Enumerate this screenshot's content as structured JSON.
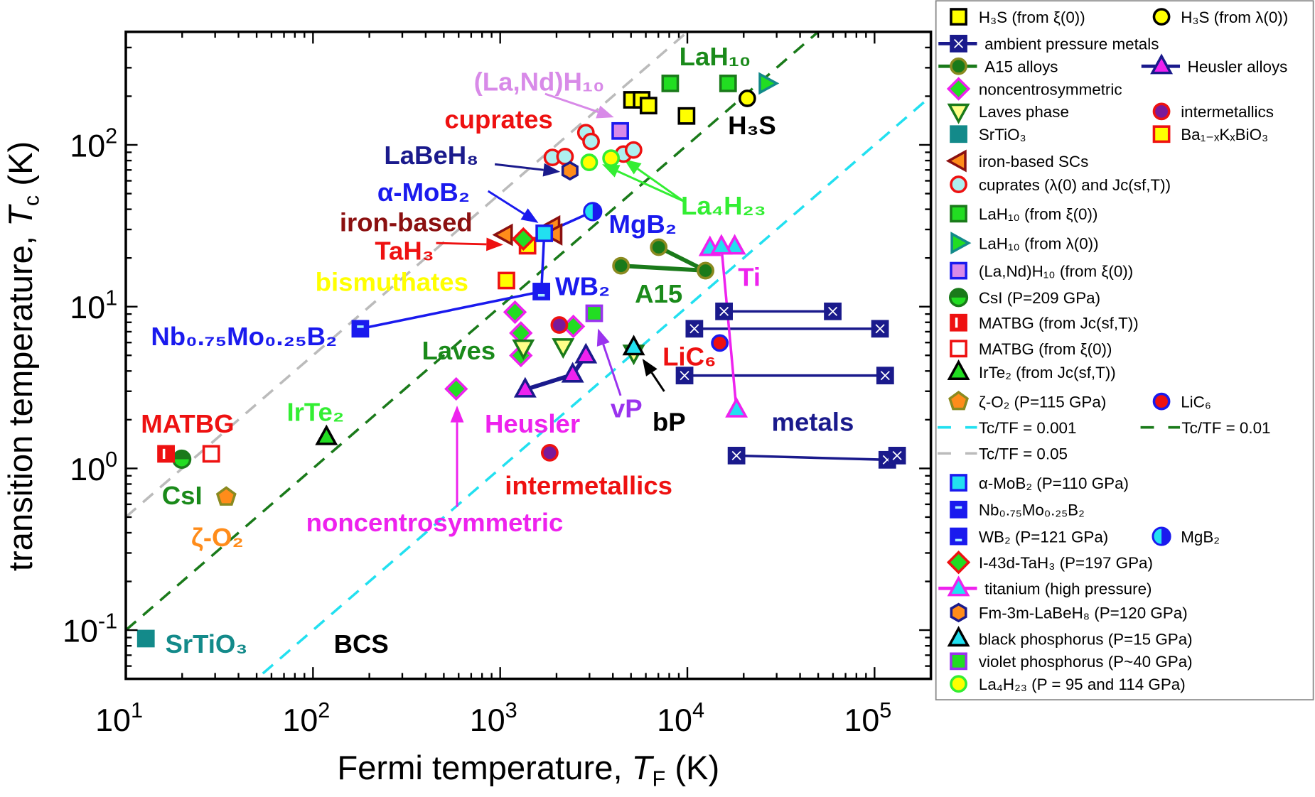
{
  "chart_data": {
    "type": "scatter",
    "xlabel": {
      "text": "Fermi temperature, ",
      "var": "T",
      "sub": "F",
      "unit": " (K)"
    },
    "ylabel": {
      "text": "transition temperature, ",
      "var": "T",
      "sub": "c",
      "unit": " (K)"
    },
    "xscale": "log",
    "yscale": "log",
    "xlim": [
      10,
      200000
    ],
    "ylim": [
      0.05,
      500
    ],
    "grid": false,
    "legend_placement": "right-outside",
    "xticks": [
      {
        "value": 10,
        "base": "10",
        "exp": "1"
      },
      {
        "value": 100,
        "base": "10",
        "exp": "2"
      },
      {
        "value": 1000,
        "base": "10",
        "exp": "3"
      },
      {
        "value": 10000,
        "base": "10",
        "exp": "4"
      },
      {
        "value": 100000,
        "base": "10",
        "exp": "5"
      }
    ],
    "yticks": [
      {
        "value": 0.1,
        "base": "10",
        "exp": "-1"
      },
      {
        "value": 1,
        "base": "10",
        "exp": "0"
      },
      {
        "value": 10,
        "base": "10",
        "exp": "1"
      },
      {
        "value": 100,
        "base": "10",
        "exp": "2"
      }
    ],
    "reference_lines": [
      {
        "name": "Tc/TF = 0.001",
        "ratio": 0.001,
        "color": "#22e0f0",
        "style": "dashed"
      },
      {
        "name": "Tc/TF = 0.01",
        "ratio": 0.01,
        "color": "#1a7a1a",
        "style": "dashed"
      },
      {
        "name": "Tc/TF = 0.05",
        "ratio": 0.05,
        "color": "#bbbbbb",
        "style": "dashed"
      }
    ],
    "series": [
      {
        "name": "H₃S (from ξ(0))",
        "marker": "square",
        "fill": "#ffff00",
        "stroke": "#000000",
        "points": [
          [
            5060,
            190
          ],
          [
            5700,
            190
          ],
          [
            6200,
            175
          ],
          [
            9900,
            151
          ]
        ]
      },
      {
        "name": "H₃S (from λ(0))",
        "marker": "circle",
        "fill": "#ffff00",
        "stroke": "#000000",
        "points": [
          [
            20900,
            194
          ]
        ]
      },
      {
        "name": "ambient pressure metals",
        "marker": "square-crossed",
        "fill": "#1a1a8c",
        "stroke": "#1a1a8c",
        "line_color": "#1a1a8c",
        "segments": [
          [
            [
              15700,
              9.35
            ],
            [
              59800,
              9.35
            ]
          ],
          [
            [
              10900,
              7.3
            ],
            [
              107000,
              7.3
            ]
          ],
          [
            [
              9660,
              3.75
            ],
            [
              114000,
              3.75
            ]
          ],
          [
            [
              18300,
              1.2
            ],
            [
              117000,
              1.13
            ],
            [
              132000,
              1.2
            ]
          ]
        ]
      },
      {
        "name": "A15 alloys",
        "marker": "circle",
        "fill": "#1a7a1a",
        "stroke": "#8a8a20",
        "line_color": "#1a7a1a",
        "segments": [
          [
            [
              4420,
              17.9
            ],
            [
              12500,
              16.7
            ]
          ],
          [
            [
              7030,
              23.3
            ],
            [
              12500,
              16.7
            ]
          ]
        ]
      },
      {
        "name": "Heusler alloys",
        "marker": "triangle-up",
        "fill": "#ee22ee",
        "stroke": "#1a1a8c",
        "line_color": "#1a1a8c",
        "segments": [
          [
            [
              1360,
              3.07
            ],
            [
              2440,
              3.8
            ],
            [
              2870,
              4.99
            ]
          ]
        ]
      },
      {
        "name": "noncentrosymmetric",
        "marker": "diamond",
        "fill": "#22dd22",
        "stroke": "#ee22ee",
        "points": [
          [
            1200,
            9.25
          ],
          [
            1290,
            6.87
          ],
          [
            1290,
            4.99
          ],
          [
            2460,
            7.55
          ],
          [
            582,
            3.1
          ]
        ]
      },
      {
        "name": "Laves phase",
        "marker": "triangle-down",
        "fill": "#ffff88",
        "stroke": "#1a7a1a",
        "points": [
          [
            1330,
            5.6
          ],
          [
            2170,
            5.7
          ],
          [
            5170,
            5.2
          ]
        ]
      },
      {
        "name": "intermetallics",
        "marker": "circle",
        "fill": "#7a1a9a",
        "stroke": "#ee1111",
        "points": [
          [
            2070,
            7.7
          ],
          [
            1840,
            1.25
          ]
        ]
      },
      {
        "name": "SrTiO₃",
        "marker": "square",
        "fill": "#138a8a",
        "stroke": "#138a8a",
        "points": [
          [
            12.8,
            0.0887
          ]
        ]
      },
      {
        "name": "Ba₁₋ₓKₓBiO₃",
        "marker": "square",
        "fill": "#ffff00",
        "stroke": "#ee1111",
        "points": [
          [
            1080,
            14.5
          ],
          [
            1400,
            23.8
          ]
        ]
      },
      {
        "name": "iron-based SCs",
        "marker": "triangle-left",
        "fill": "#ff8c1a",
        "stroke": "#8b1010",
        "points": [
          [
            1060,
            27.8
          ],
          [
            1900,
            31.3
          ],
          [
            1950,
            28
          ]
        ]
      },
      {
        "name": "cuprates (λ(0) and Jc(sf,T))",
        "marker": "circle",
        "fill": "#aef0f0",
        "stroke": "#ee1111",
        "points": [
          [
            1900,
            83.7
          ],
          [
            2220,
            84.7
          ],
          [
            2870,
            119
          ],
          [
            3060,
            105
          ],
          [
            4560,
            87.8
          ],
          [
            5160,
            93
          ]
        ]
      },
      {
        "name": "LaH₁₀ (from ξ(0))",
        "marker": "square",
        "fill": "#22dd22",
        "stroke": "#1a7a1a",
        "points": [
          [
            8100,
            240
          ],
          [
            16500,
            240
          ]
        ]
      },
      {
        "name": "LaH₁₀ (from λ(0))",
        "marker": "triangle-right",
        "fill": "#22dd22",
        "stroke": "#138a8a",
        "points": [
          [
            26500,
            240
          ]
        ]
      },
      {
        "name": "(La,Nd)H₁₀ (from ξ(0))",
        "marker": "square",
        "fill": "#d88ae8",
        "stroke": "#1a1aee",
        "points": [
          [
            4380,
            122
          ]
        ]
      },
      {
        "name": "CsI (P=209 GPa)",
        "marker": "circle-half-h",
        "fill": "#22dd22",
        "stroke": "#1a7a1a",
        "points": [
          [
            19.9,
            1.14
          ]
        ]
      },
      {
        "name": "MATBG (from Jc(sf,T))",
        "marker": "square-bar",
        "fill": "#ee1111",
        "stroke": "#ee1111",
        "points": [
          [
            16.4,
            1.23
          ]
        ]
      },
      {
        "name": "MATBG (from ξ(0))",
        "marker": "square",
        "fill": "#ffffff",
        "stroke": "#ee1111",
        "points": [
          [
            28.6,
            1.23
          ]
        ]
      },
      {
        "name": "IrTe₂ (from Jc(sf,T))",
        "marker": "triangle-up",
        "fill": "#22dd22",
        "stroke": "#000000",
        "points": [
          [
            118,
            1.56
          ]
        ]
      },
      {
        "name": "ζ-O₂ (P=115 GPa)",
        "marker": "pentagon",
        "fill": "#ff8c1a",
        "stroke": "#8a8a20",
        "points": [
          [
            34.4,
            0.666
          ]
        ]
      },
      {
        "name": "LiC₆",
        "marker": "circle",
        "fill": "#ee1111",
        "stroke": "#1a1aee",
        "points": [
          [
            14900,
            5.96
          ]
        ]
      },
      {
        "name": "α-MoB₂ (P=110 GPa)",
        "marker": "square",
        "fill": "#22e0f0",
        "stroke": "#1a1aee",
        "points": [
          [
            1720,
            28.4
          ]
        ]
      },
      {
        "name": "Nb₀.₇₅Mo₀.₂₅B₂",
        "marker": "square-dash",
        "fill": "#1a1aee",
        "stroke": "#1a1aee",
        "points": [
          [
            179,
            7.3
          ]
        ]
      },
      {
        "name": "WB₂ (P=121 GPa)",
        "marker": "square-dash-low",
        "fill": "#1a1aee",
        "stroke": "#1a1aee",
        "points": [
          [
            1660,
            12.4
          ]
        ]
      },
      {
        "name": "MgB₂",
        "marker": "circle-half-v",
        "fill": "#1a1aee",
        "stroke": "#1a1aee",
        "points": [
          [
            3120,
            38.7
          ]
        ]
      },
      {
        "name": "I-43d-TaH₃ (P=197 GPa)",
        "marker": "diamond",
        "fill": "#22dd22",
        "stroke": "#ee1111",
        "points": [
          [
            1330,
            26.2
          ]
        ]
      },
      {
        "name": "titanium (high pressure)",
        "marker": "triangle-up",
        "fill": "#22e0f0",
        "stroke": "#ee22ee",
        "line_color": "#ee22ee",
        "points": [
          [
            13200,
            23
          ],
          [
            17900,
            23.5
          ]
        ],
        "segments": [
          [
            [
              15200,
              23.5
            ],
            [
              18300,
              2.31
            ]
          ]
        ]
      },
      {
        "name": "Fm-3m-LaBeH₈ (P=120 GPa)",
        "marker": "hexagon",
        "fill": "#ff8c1a",
        "stroke": "#1a1a8c",
        "points": [
          [
            2360,
            69.2
          ]
        ]
      },
      {
        "name": "black phosphorus (P=15 GPa)",
        "marker": "triangle-up",
        "fill": "#22e0f0",
        "stroke": "#000000",
        "points": [
          [
            5170,
            5.6
          ]
        ]
      },
      {
        "name": "violet phosphorus (P~40 GPa)",
        "marker": "square",
        "fill": "#22dd22",
        "stroke": "#9a33ee",
        "points": [
          [
            3180,
            9.1
          ]
        ]
      },
      {
        "name": "La₄H₂₃ (P = 95 and 114 GPa)",
        "marker": "circle",
        "fill": "#ffff00",
        "stroke": "#33ee33",
        "points": [
          [
            2990,
            78
          ],
          [
            3910,
            82.8
          ]
        ]
      }
    ],
    "boride_connector": {
      "color": "#1a1aee",
      "points": [
        [
          179,
          7.3
        ],
        [
          1660,
          12.4
        ],
        [
          1720,
          28.4
        ],
        [
          3120,
          38.7
        ]
      ]
    },
    "annotations": [
      {
        "text": "(La,Nd)H₁₀",
        "color": "#d88ae8"
      },
      {
        "text": "LaH₁₀",
        "color": "#1a8a1a"
      },
      {
        "text": "cuprates",
        "color": "#ee1111"
      },
      {
        "text": "H₃S",
        "color": "#000000"
      },
      {
        "text": "LaBeH₈",
        "color": "#1a1a8c"
      },
      {
        "text": "α-MoB₂",
        "color": "#1a1aee"
      },
      {
        "text": "La₄H₂₃",
        "color": "#33ee33"
      },
      {
        "text": "MgB₂",
        "color": "#1a1aee"
      },
      {
        "text": "iron-based",
        "color": "#8b1010"
      },
      {
        "text": "TaH₃",
        "color": "#ee1111"
      },
      {
        "text": "bismuthates",
        "color": "#ffff00"
      },
      {
        "text": "WB₂",
        "color": "#1a1aee"
      },
      {
        "text": "A15",
        "color": "#1a8a1a"
      },
      {
        "text": "Ti",
        "color": "#ee22ee"
      },
      {
        "text": "Nb₀.₇₅Mo₀.₂₅B₂",
        "color": "#1a1aee"
      },
      {
        "text": "Laves",
        "color": "#1a8a1a"
      },
      {
        "text": "LiC₆",
        "color": "#ee1111"
      },
      {
        "text": "IrTe₂",
        "color": "#33ee33"
      },
      {
        "text": "MATBG",
        "color": "#ee1111"
      },
      {
        "text": "Heusler",
        "color": "#ee22ee"
      },
      {
        "text": "vP",
        "color": "#9a33ee"
      },
      {
        "text": "bP",
        "color": "#000000"
      },
      {
        "text": "metals",
        "color": "#1a1a8c"
      },
      {
        "text": "intermetallics",
        "color": "#ee1111"
      },
      {
        "text": "CsI",
        "color": "#1a8a1a"
      },
      {
        "text": "ζ-O₂",
        "color": "#ff8c1a"
      },
      {
        "text": "noncentrosymmetric",
        "color": "#ee22ee"
      },
      {
        "text": "SrTiO₃",
        "color": "#138a8a"
      },
      {
        "text": "BCS",
        "color": "#000000"
      }
    ],
    "legend_rows": [
      [
        "H₃S (from ξ(0))",
        "H₃S (from λ(0))"
      ],
      [
        "ambient pressure metals"
      ],
      [
        "A15 alloys",
        "Heusler alloys"
      ],
      [
        "noncentrosymmetric"
      ],
      [
        "Laves phase",
        "intermetallics"
      ],
      [
        "SrTiO₃",
        "Ba₁₋ₓKₓBiO₃"
      ],
      [
        "iron-based SCs"
      ],
      [
        "cuprates (λ(0) and Jc(sf,T))"
      ],
      [
        "LaH₁₀ (from ξ(0))"
      ],
      [
        "LaH₁₀ (from λ(0))"
      ],
      [
        "(La,Nd)H₁₀ (from ξ(0))"
      ],
      [
        "CsI (P=209 GPa)"
      ],
      [
        "MATBG (from Jc(sf,T))"
      ],
      [
        "MATBG (from ξ(0))"
      ],
      [
        "IrTe₂ (from Jc(sf,T))"
      ],
      [
        "ζ-O₂ (P=115 GPa)",
        "LiC₆"
      ],
      [
        "Tc/TF = 0.001",
        "Tc/TF = 0.01"
      ],
      [
        "Tc/TF = 0.05"
      ],
      [
        "α-MoB₂ (P=110 GPa)"
      ],
      [
        "Nb₀.₇₅Mo₀.₂₅B₂"
      ],
      [
        "WB₂ (P=121 GPa)",
        "MgB₂"
      ],
      [
        "I-43d-TaH₃ (P=197 GPa)"
      ],
      [
        "titanium (high pressure)"
      ],
      [
        "Fm-3m-LaBeH₈ (P=120 GPa)"
      ],
      [
        "black phosphorus (P=15 GPa)"
      ],
      [
        "violet phosphorus (P~40 GPa)"
      ],
      [
        "La₄H₂₃ (P = 95 and 114 GPa)"
      ]
    ]
  }
}
